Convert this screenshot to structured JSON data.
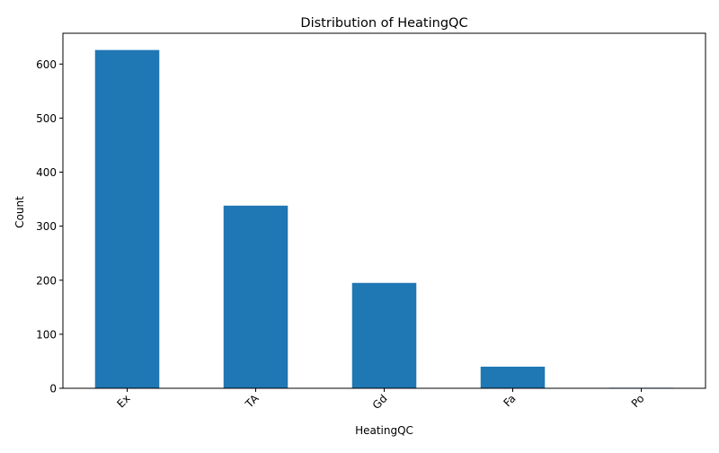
{
  "chart_data": {
    "type": "bar",
    "title": "Distribution of HeatingQC",
    "xlabel": "HeatingQC",
    "ylabel": "Count",
    "categories": [
      "Ex",
      "TA",
      "Gd",
      "Fa",
      "Po"
    ],
    "values": [
      626,
      338,
      195,
      40,
      1
    ],
    "ylim": [
      0,
      657
    ],
    "yticks": [
      0,
      100,
      200,
      300,
      400,
      500,
      600
    ],
    "grid": false,
    "legend": "none",
    "bar_color": "#1f77b4"
  }
}
